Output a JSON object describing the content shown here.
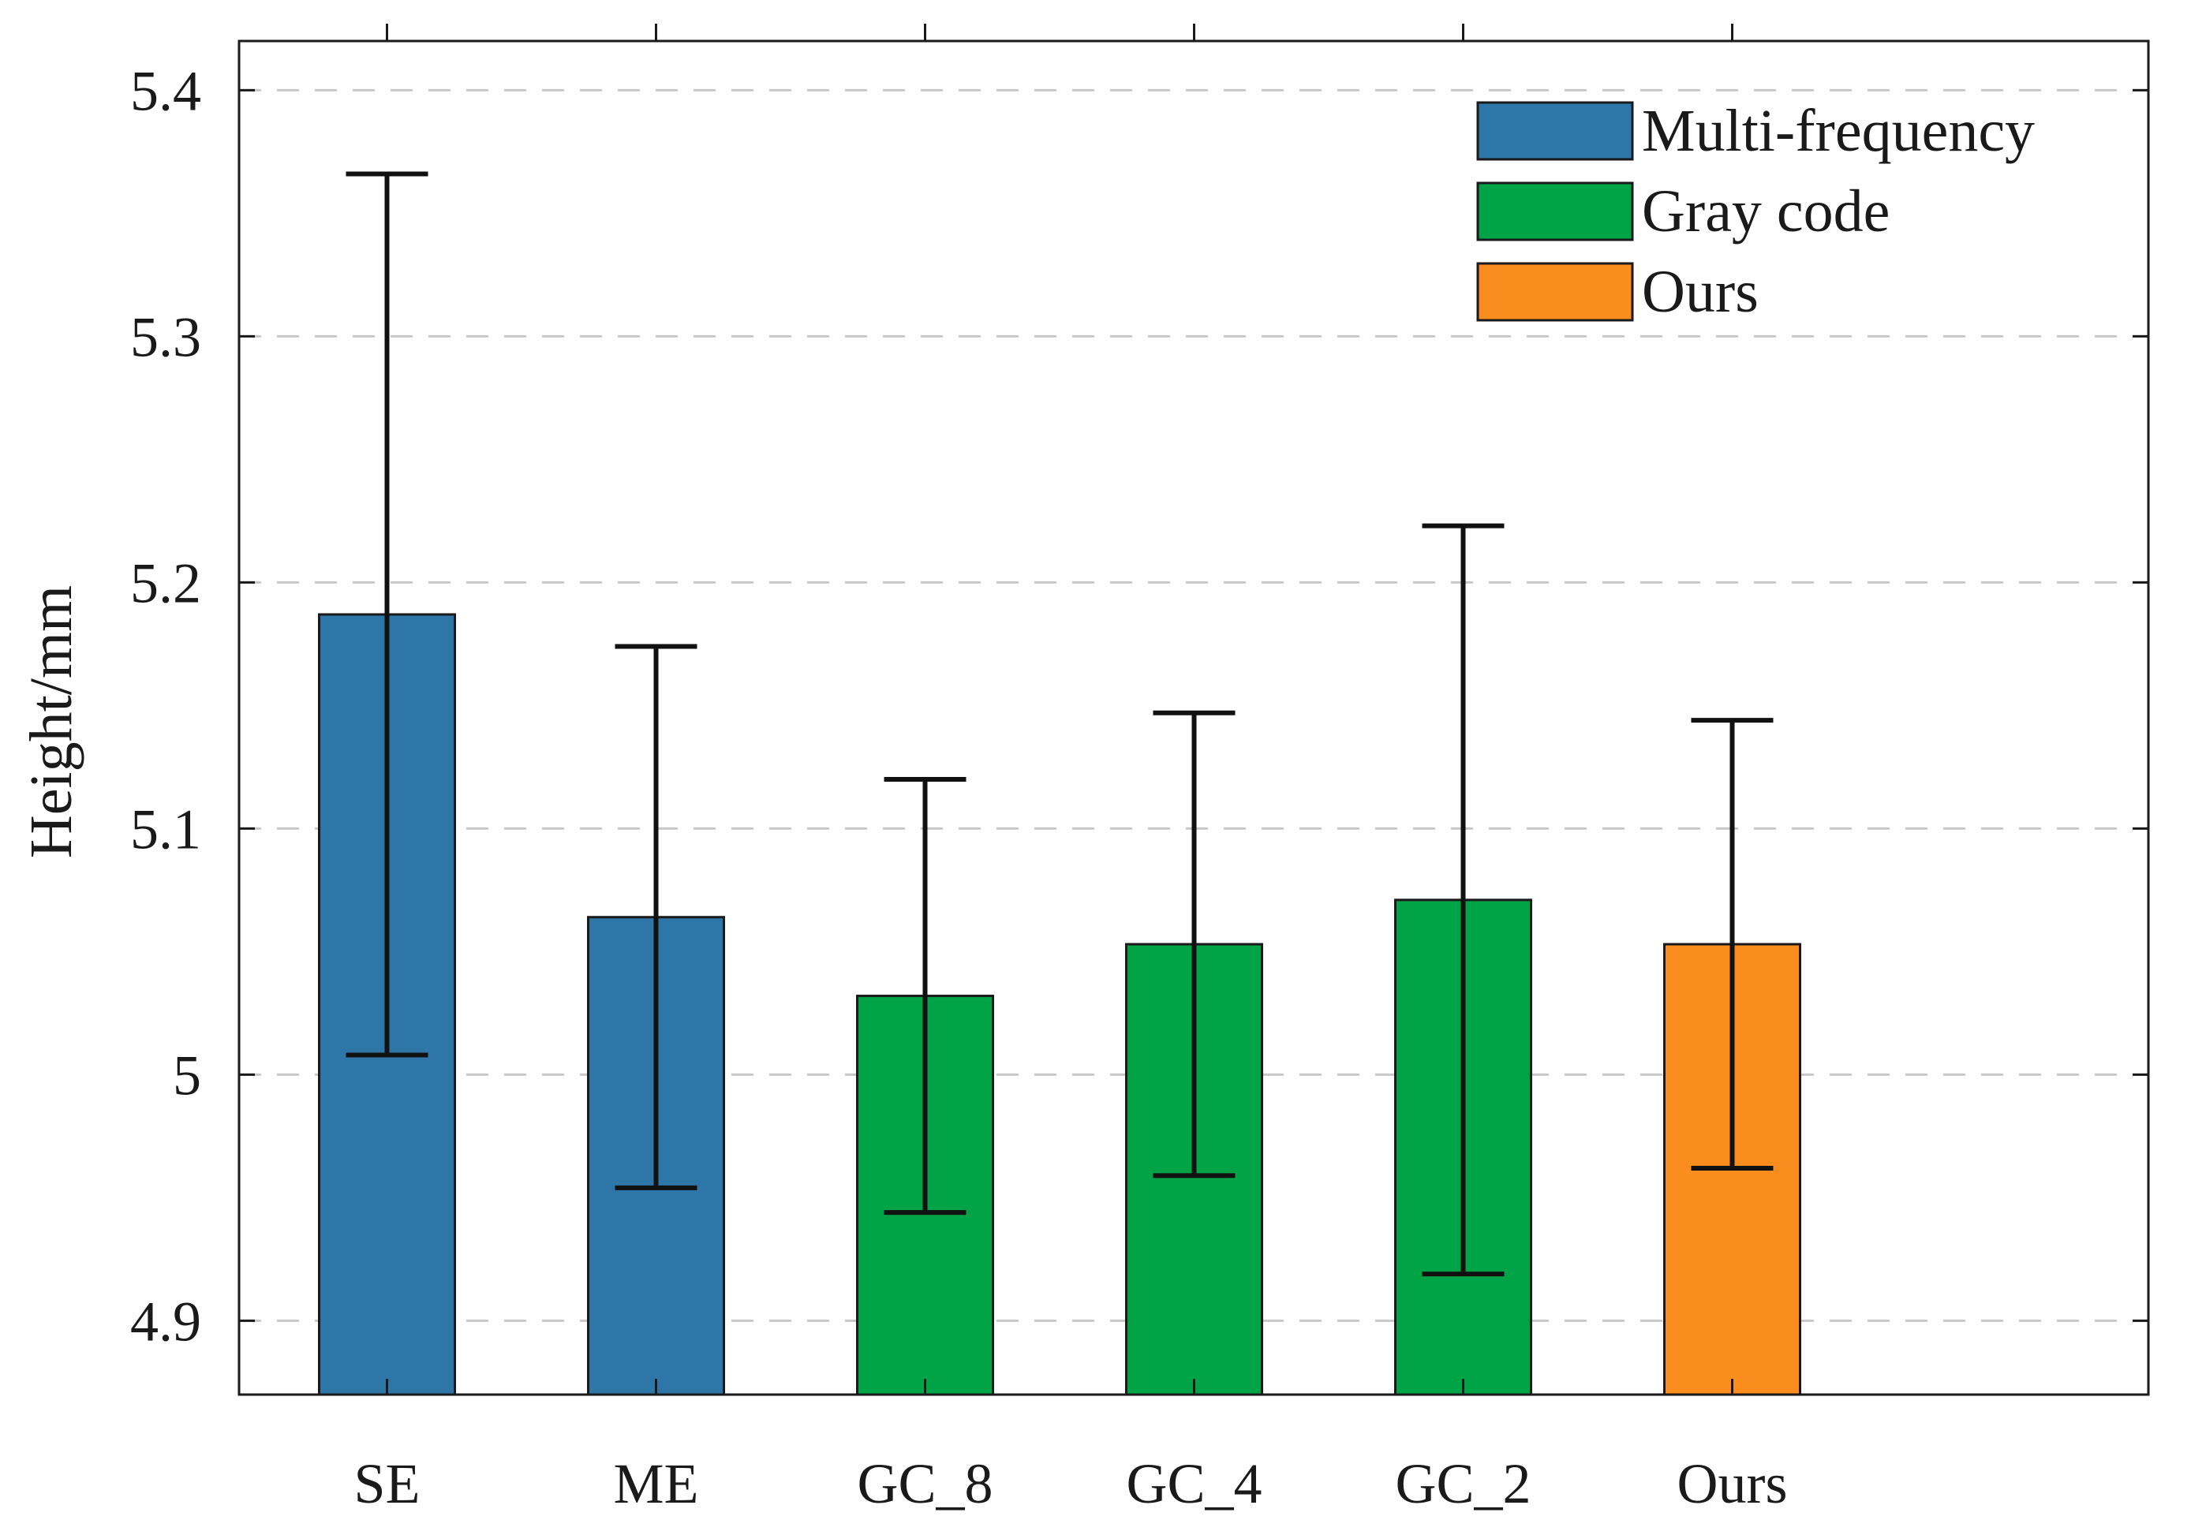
{
  "chart_data": {
    "type": "bar",
    "title": "",
    "xlabel": "",
    "ylabel": "Height/mm",
    "ylim": [
      4.87,
      5.42
    ],
    "yticks": [
      4.9,
      5.0,
      5.1,
      5.2,
      5.3,
      5.4
    ],
    "ytick_labels": [
      "4.9",
      "5",
      "5.1",
      "5.2",
      "5.3",
      "5.4"
    ],
    "grid": "horizontal dashed",
    "legend_position": "top-right",
    "categories": [
      "SE",
      "ME",
      "GC_8",
      "GC_4",
      "GC_2",
      "Ours"
    ],
    "series": [
      {
        "name": "Multi-frequency",
        "color": "#2e76a8",
        "points": [
          {
            "category": "SE",
            "value": 5.187,
            "err_low": 5.008,
            "err_high": 5.366
          },
          {
            "category": "ME",
            "value": 5.064,
            "err_low": 4.954,
            "err_high": 5.174
          }
        ]
      },
      {
        "name": "Gray code",
        "color": "#00a346",
        "points": [
          {
            "category": "GC_8",
            "value": 5.032,
            "err_low": 4.944,
            "err_high": 5.12
          },
          {
            "category": "GC_4",
            "value": 5.053,
            "err_low": 4.959,
            "err_high": 5.147
          },
          {
            "category": "GC_2",
            "value": 5.071,
            "err_low": 4.919,
            "err_high": 5.223
          }
        ]
      },
      {
        "name": "Ours",
        "color": "#fb8c1e",
        "points": [
          {
            "category": "Ours",
            "value": 5.053,
            "err_low": 4.962,
            "err_high": 5.144
          }
        ]
      }
    ]
  }
}
